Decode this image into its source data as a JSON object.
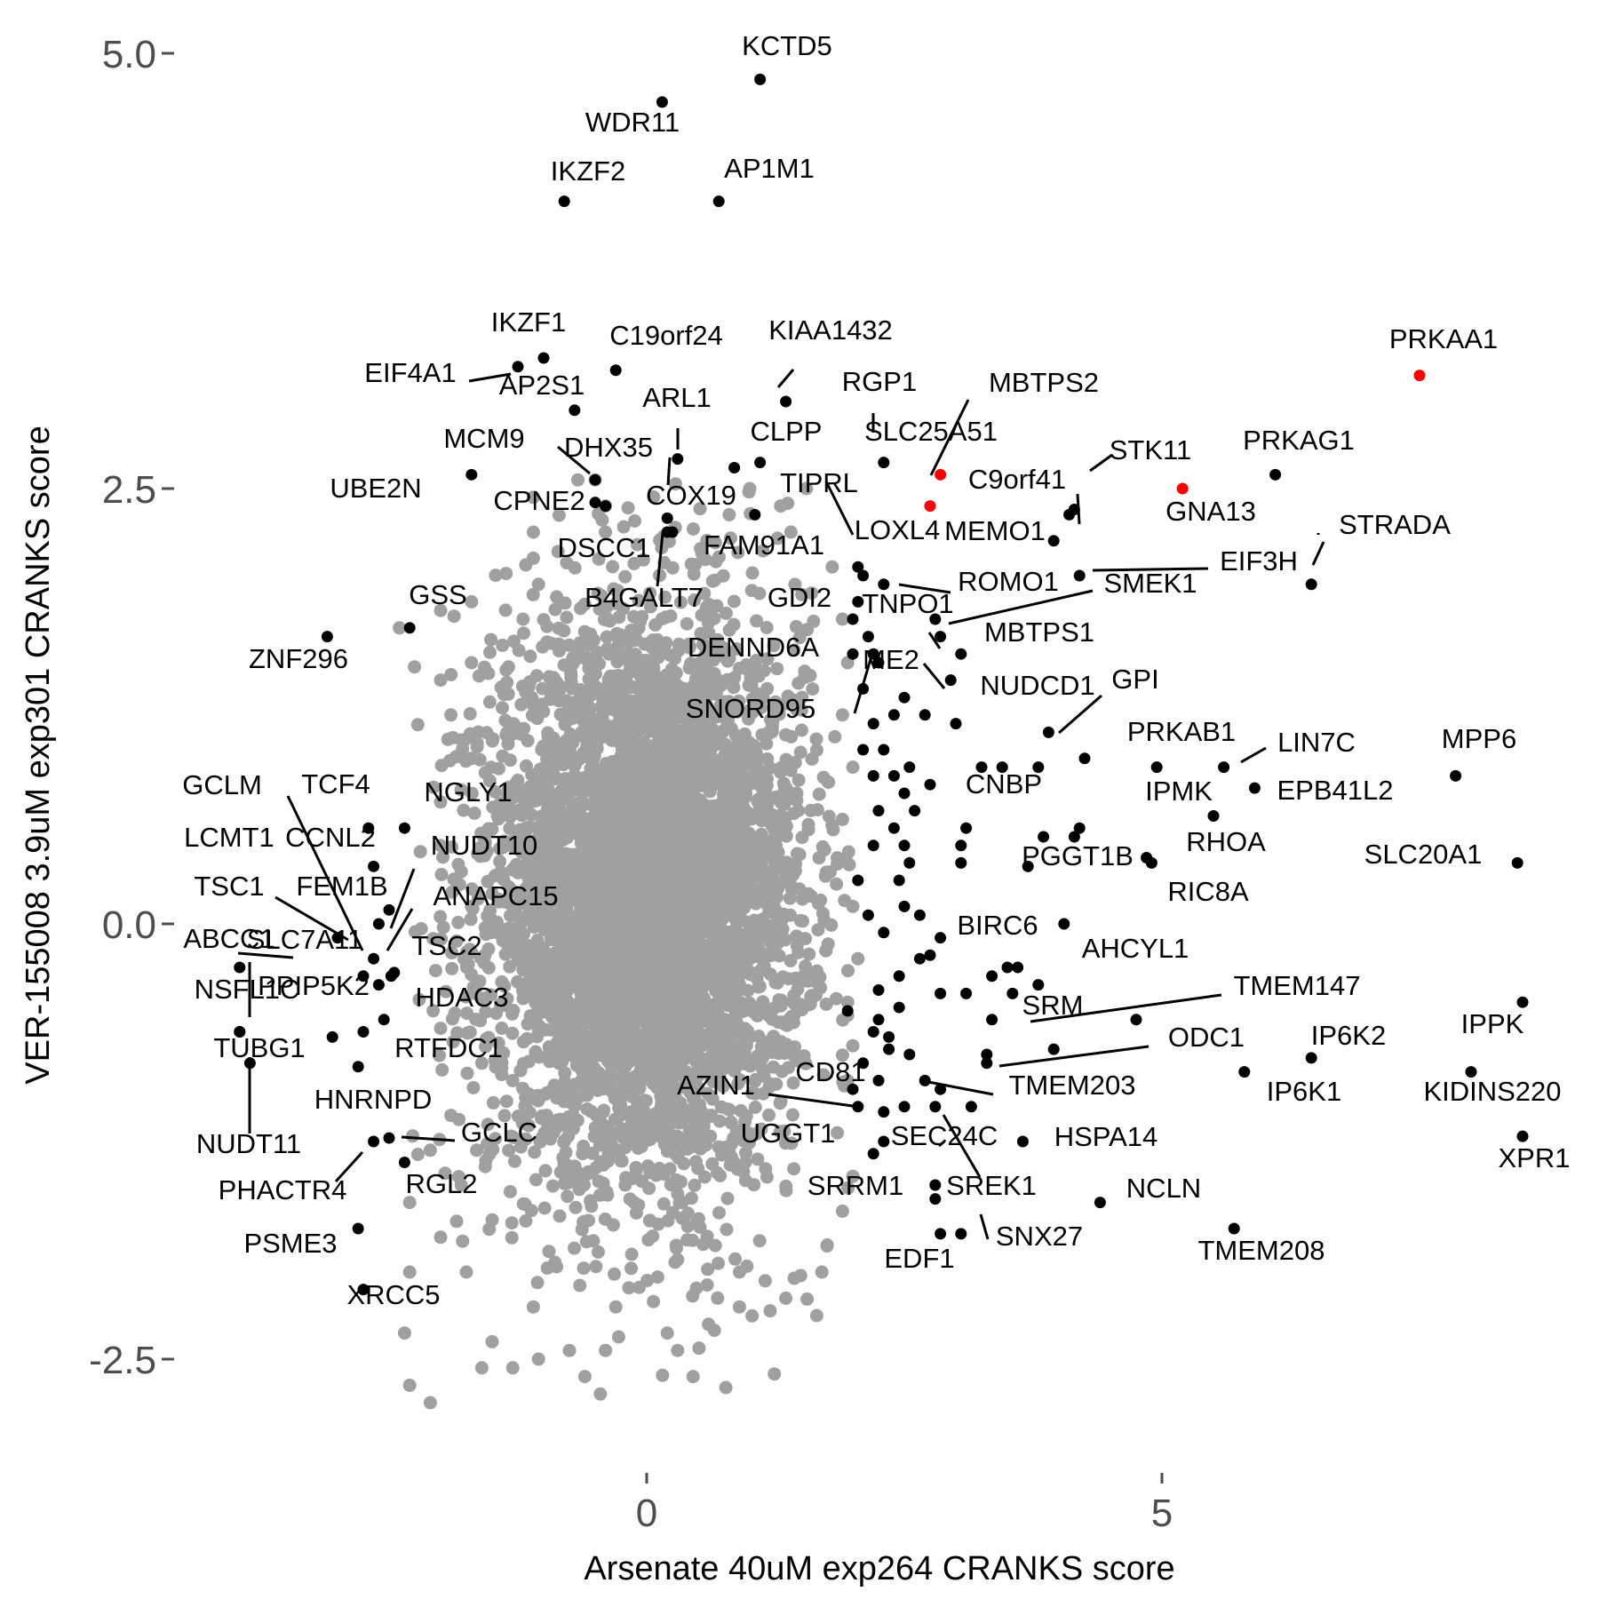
{
  "chart_data": {
    "type": "scatter",
    "xlabel": "Arsenate 40uM exp264 CRANKS score",
    "ylabel": "VER-155008 3.9uM exp301 CRANKS score",
    "xlim": [
      -5.4,
      8.9
    ],
    "ylim": [
      -3.4,
      5.2
    ],
    "xticks": [
      {
        "value": 0,
        "label": "0"
      },
      {
        "value": 5,
        "label": "5"
      }
    ],
    "yticks": [
      {
        "value": 5.0,
        "label": "5.0"
      },
      {
        "value": 2.5,
        "label": "2.5"
      },
      {
        "value": 0.0,
        "label": "0.0"
      },
      {
        "value": -2.5,
        "label": "-2.5"
      }
    ],
    "grid": false,
    "legend": "none",
    "colors": {
      "background": "#2b2b2b",
      "highlight": "#000000",
      "special": "#ff0000",
      "axis_text": "#4d4d4d"
    },
    "background_cloud": {
      "description_color": "#a0a0a0",
      "approx_points": 5000,
      "core_x_mean": 0.0,
      "core_x_sd": 0.75,
      "core_y_mean": 0.15,
      "core_y_sd": 0.8,
      "outliers": [
        [
          -1.1,
          2.45
        ],
        [
          -1.1,
          2.25
        ],
        [
          -1.1,
          2.1
        ],
        [
          -1.05,
          1.95
        ],
        [
          -0.5,
          2.55
        ],
        [
          -0.4,
          2.4
        ],
        [
          -0.4,
          2.25
        ],
        [
          -1.7,
          1.85
        ],
        [
          -2.0,
          1.8
        ],
        [
          -2.4,
          1.7
        ],
        [
          -1.7,
          1.5
        ],
        [
          -1.9,
          1.2
        ],
        [
          -2.0,
          1.4
        ],
        [
          -1.7,
          0.95
        ],
        [
          -2.0,
          0.7
        ],
        [
          -1.8,
          0.3
        ],
        [
          -2.0,
          0.45
        ],
        [
          -1.7,
          0.1
        ],
        [
          -2.0,
          -0.6
        ],
        [
          -1.6,
          -0.8
        ],
        [
          -1.9,
          -1.1
        ],
        [
          -2.1,
          -1.3
        ],
        [
          -1.8,
          -1.5
        ],
        [
          -2.3,
          -1.6
        ],
        [
          -2.0,
          -1.8
        ],
        [
          -1.75,
          -2.0
        ],
        [
          -2.3,
          -2.0
        ],
        [
          -2.35,
          -2.35
        ],
        [
          -1.5,
          -2.4
        ],
        [
          -1.6,
          -2.55
        ],
        [
          -2.3,
          -2.65
        ],
        [
          -2.1,
          -2.75
        ],
        [
          -1.3,
          -2.55
        ],
        [
          -1.05,
          -2.5
        ],
        [
          -0.6,
          -2.6
        ],
        [
          -0.45,
          -2.7
        ],
        [
          -0.4,
          -2.45
        ],
        [
          -1.1,
          -2.2
        ],
        [
          -0.3,
          -2.2
        ],
        [
          0.2,
          -2.35
        ],
        [
          0.3,
          -2.45
        ],
        [
          0.45,
          -2.6
        ],
        [
          0.9,
          -2.2
        ],
        [
          0.9,
          -2.0
        ],
        [
          1.15,
          -2.05
        ],
        [
          1.7,
          -2.0
        ],
        [
          1.65,
          -2.25
        ],
        [
          1.9,
          -1.65
        ],
        [
          2.0,
          -1.45
        ],
        [
          1.85,
          -1.2
        ],
        [
          1.95,
          -0.9
        ],
        [
          2.0,
          -0.7
        ],
        [
          1.95,
          -0.45
        ],
        [
          2.05,
          -0.2
        ],
        [
          2.0,
          0.1
        ],
        [
          1.95,
          0.35
        ],
        [
          1.9,
          0.6
        ],
        [
          2.0,
          0.9
        ],
        [
          1.9,
          1.2
        ],
        [
          1.95,
          1.5
        ],
        [
          1.9,
          1.75
        ],
        [
          1.6,
          1.9
        ],
        [
          1.8,
          2.05
        ],
        [
          1.4,
          2.25
        ],
        [
          1.3,
          2.4
        ],
        [
          1.55,
          2.5
        ],
        [
          1.0,
          2.5
        ],
        [
          0.8,
          2.35
        ],
        [
          -1.3,
          -0.9
        ],
        [
          -1.4,
          1.6
        ],
        [
          -1.2,
          1.75
        ],
        [
          -1.5,
          -1.7
        ],
        [
          -1.65,
          -1.3
        ],
        [
          0.6,
          -2.3
        ],
        [
          -0.75,
          -2.45
        ],
        [
          1.35,
          -2.15
        ],
        [
          1.75,
          -1.85
        ]
      ]
    },
    "special_points": [
      {
        "gene": "PRKAA1",
        "x": 7.5,
        "y": 3.15
      },
      {
        "gene": "GNA13",
        "x": 5.2,
        "y": 2.5
      },
      {
        "gene": "MBTPS2",
        "x": 2.85,
        "y": 2.58
      },
      {
        "gene": "SLC25A51",
        "x": 2.75,
        "y": 2.4
      }
    ],
    "labeled_genes": [
      {
        "gene": "KCTD5",
        "x": 1.1,
        "y": 4.85,
        "label": "KCTD5"
      },
      {
        "gene": "WDR11",
        "x": 0.15,
        "y": 4.72,
        "label": "WDR11"
      },
      {
        "gene": "IKZF2",
        "x": -0.8,
        "y": 4.15,
        "label": "IKZF2"
      },
      {
        "gene": "AP1M1",
        "x": 0.7,
        "y": 4.15,
        "label": "AP1M1"
      },
      {
        "gene": "IKZF1",
        "x": -1.0,
        "y": 3.25,
        "label": "IKZF1"
      },
      {
        "gene": "C19orf24",
        "x": -0.3,
        "y": 3.18,
        "label": "C19orf24"
      },
      {
        "gene": "EIF4A1",
        "x": -1.25,
        "y": 3.2,
        "label": "EIF4A1"
      },
      {
        "gene": "AP2S1",
        "x": -0.7,
        "y": 2.95,
        "label": "AP2S1"
      },
      {
        "gene": "KIAA1432",
        "x": 1.35,
        "y": 3.0,
        "label": "KIAA1432"
      },
      {
        "gene": "RGP1",
        "x": 2.3,
        "y": 2.65,
        "label": "RGP1"
      },
      {
        "gene": "CLPP",
        "x": 1.1,
        "y": 2.65,
        "label": "CLPP"
      },
      {
        "gene": "ARL1",
        "x": 0.3,
        "y": 2.67,
        "label": "ARL1"
      },
      {
        "gene": "MCM9",
        "x": -0.5,
        "y": 2.55,
        "label": "MCM9"
      },
      {
        "gene": "DHX35",
        "x": -0.5,
        "y": 2.42,
        "label": "DHX35"
      },
      {
        "gene": "UBE2N",
        "x": -1.7,
        "y": 2.58,
        "label": "UBE2N"
      },
      {
        "gene": "CPNE2",
        "x": -0.4,
        "y": 2.4,
        "label": "CPNE2"
      },
      {
        "gene": "COX19",
        "x": 0.2,
        "y": 2.33,
        "label": "COX19"
      },
      {
        "gene": "DSCC1",
        "x": 0.85,
        "y": 2.62,
        "label": "DSCC1"
      },
      {
        "gene": "TIPRL",
        "x": 1.05,
        "y": 2.35,
        "label": "TIPRL"
      },
      {
        "gene": "FAM91A1",
        "x": 0.2,
        "y": 2.25,
        "label": "FAM91A1"
      },
      {
        "gene": "B4GALT7",
        "x": 0.25,
        "y": 2.25,
        "label": "B4GALT7"
      },
      {
        "gene": "GDI2",
        "x": 2.05,
        "y": 2.05,
        "label": "GDI2"
      },
      {
        "gene": "LOXL4",
        "x": 2.1,
        "y": 2.0,
        "label": "LOXL4"
      },
      {
        "gene": "C9orf41",
        "x": 4.1,
        "y": 2.35,
        "label": "C9orf41"
      },
      {
        "gene": "STK11",
        "x": 4.15,
        "y": 2.38,
        "label": "STK11"
      },
      {
        "gene": "PRKAG1",
        "x": 6.1,
        "y": 2.58,
        "label": "PRKAG1"
      },
      {
        "gene": "MEMO1",
        "x": 3.95,
        "y": 2.2,
        "label": "MEMO1"
      },
      {
        "gene": "STRADA",
        "x": 6.45,
        "y": 1.95,
        "label": "STRADA"
      },
      {
        "gene": "EIF3H",
        "x": 4.2,
        "y": 2.0,
        "label": "EIF3H"
      },
      {
        "gene": "ROMO1",
        "x": 2.3,
        "y": 1.95,
        "label": "ROMO1"
      },
      {
        "gene": "SMEK1",
        "x": 2.8,
        "y": 1.75,
        "label": "SMEK1"
      },
      {
        "gene": "TNPO1",
        "x": 2.05,
        "y": 1.85,
        "label": "TNPO1"
      },
      {
        "gene": "GSS",
        "x": -2.3,
        "y": 1.7,
        "label": "GSS"
      },
      {
        "gene": "ZNF296",
        "x": -3.1,
        "y": 1.65,
        "label": "ZNF296"
      },
      {
        "gene": "MBTPS1",
        "x": 3.05,
        "y": 1.55,
        "label": "MBTPS1"
      },
      {
        "gene": "DENND6A",
        "x": 2.15,
        "y": 1.65,
        "label": "DENND6A"
      },
      {
        "gene": "ME2",
        "x": 2.85,
        "y": 1.65,
        "label": "ME2"
      },
      {
        "gene": "NUDCD1",
        "x": 2.95,
        "y": 1.4,
        "label": "NUDCD1"
      },
      {
        "gene": "SNORD95",
        "x": 2.2,
        "y": 1.55,
        "label": "SNORD95"
      },
      {
        "gene": "GPI",
        "x": 3.9,
        "y": 1.1,
        "label": "GPI"
      },
      {
        "gene": "PRKAB1",
        "x": 4.95,
        "y": 0.9,
        "label": "PRKAB1"
      },
      {
        "gene": "LIN7C",
        "x": 5.6,
        "y": 0.9,
        "label": "LIN7C"
      },
      {
        "gene": "MPP6",
        "x": 7.85,
        "y": 0.85,
        "label": "MPP6"
      },
      {
        "gene": "IPMK",
        "x": 5.5,
        "y": 0.62,
        "label": "IPMK"
      },
      {
        "gene": "EPB41L2",
        "x": 5.9,
        "y": 0.78,
        "label": "EPB41L2"
      },
      {
        "gene": "CNBP",
        "x": 3.25,
        "y": 0.9,
        "label": "CNBP"
      },
      {
        "gene": "RHOA",
        "x": 4.15,
        "y": 0.5,
        "label": "RHOA"
      },
      {
        "gene": "SLC20A1",
        "x": 8.45,
        "y": 0.35,
        "label": "SLC20A1"
      },
      {
        "gene": "PGGT1B",
        "x": 3.7,
        "y": 0.33,
        "label": "PGGT1B"
      },
      {
        "gene": "RIC8A",
        "x": 4.9,
        "y": 0.35,
        "label": "RIC8A"
      },
      {
        "gene": "BIRC6",
        "x": 2.85,
        "y": -0.08,
        "label": "BIRC6"
      },
      {
        "gene": "AHCYL1",
        "x": 4.05,
        "y": 0.0,
        "label": "AHCYL1"
      },
      {
        "gene": "TMEM147",
        "x": 4.75,
        "y": -0.55,
        "label": "TMEM147"
      },
      {
        "gene": "SRM",
        "x": 3.95,
        "y": -0.72,
        "label": "SRM"
      },
      {
        "gene": "IPPK",
        "x": 8.5,
        "y": -0.45,
        "label": "IPPK"
      },
      {
        "gene": "ODC1",
        "x": 3.3,
        "y": -0.8,
        "label": "ODC1"
      },
      {
        "gene": "IP6K2",
        "x": 6.45,
        "y": -0.77,
        "label": "IP6K2"
      },
      {
        "gene": "IP6K1",
        "x": 5.8,
        "y": -0.85,
        "label": "IP6K1"
      },
      {
        "gene": "KIDINS220",
        "x": 8.0,
        "y": -0.85,
        "label": "KIDINS220"
      },
      {
        "gene": "TMEM203",
        "x": 2.7,
        "y": -0.9,
        "label": "TMEM203"
      },
      {
        "gene": "AZIN1",
        "x": 2.05,
        "y": -1.05,
        "label": "AZIN1"
      },
      {
        "gene": "CD81",
        "x": 2.3,
        "y": -1.08,
        "label": "CD81"
      },
      {
        "gene": "HSPA14",
        "x": 3.65,
        "y": -1.25,
        "label": "HSPA14"
      },
      {
        "gene": "XPR1",
        "x": 8.5,
        "y": -1.22,
        "label": "XPR1"
      },
      {
        "gene": "UGGT1",
        "x": 2.2,
        "y": -1.32,
        "label": "UGGT1"
      },
      {
        "gene": "SEC24C",
        "x": 2.8,
        "y": -1.05,
        "label": "SEC24C"
      },
      {
        "gene": "SREK1",
        "x": 2.8,
        "y": -1.5,
        "label": "SREK1"
      },
      {
        "gene": "NCLN",
        "x": 4.4,
        "y": -1.6,
        "label": "NCLN"
      },
      {
        "gene": "SRRM1",
        "x": 2.8,
        "y": -1.58,
        "label": "SRRM1"
      },
      {
        "gene": "TMEM208",
        "x": 5.7,
        "y": -1.75,
        "label": "TMEM208"
      },
      {
        "gene": "SNX27",
        "x": 3.05,
        "y": -1.78,
        "label": "SNX27"
      },
      {
        "gene": "EDF1",
        "x": 2.85,
        "y": -1.78,
        "label": "EDF1"
      },
      {
        "gene": "GCLM",
        "x": -3.95,
        "y": -0.25,
        "label": "GCLM"
      },
      {
        "gene": "TCF4",
        "x": -2.7,
        "y": 0.55,
        "label": "TCF4"
      },
      {
        "gene": "NGLY1",
        "x": -2.35,
        "y": 0.55,
        "label": "NGLY1"
      },
      {
        "gene": "LCMT1",
        "x": -2.65,
        "y": -0.2,
        "label": "LCMT1"
      },
      {
        "gene": "CCNL2",
        "x": -2.65,
        "y": 0.33,
        "label": "CCNL2"
      },
      {
        "gene": "NUDT10",
        "x": -2.5,
        "y": 0.08,
        "label": "NUDT10"
      },
      {
        "gene": "TSC1",
        "x": -3.0,
        "y": -0.08,
        "label": "TSC1"
      },
      {
        "gene": "FEM1B",
        "x": -2.6,
        "y": 0.0,
        "label": "FEM1B"
      },
      {
        "gene": "ANAPC15",
        "x": -2.48,
        "y": -0.3,
        "label": "ANAPC15"
      },
      {
        "gene": "ABCC1",
        "x": -3.95,
        "y": -0.62,
        "label": "ABCC1"
      },
      {
        "gene": "SLC7A11",
        "x": -2.75,
        "y": -0.3,
        "label": "SLC7A11"
      },
      {
        "gene": "TSC2",
        "x": -2.45,
        "y": -0.28,
        "label": "TSC2"
      },
      {
        "gene": "NSFL1C",
        "x": -3.95,
        "y": -0.62,
        "label": "NSFL1C"
      },
      {
        "gene": "PPIP5K2",
        "x": -2.6,
        "y": -0.35,
        "label": "PPIP5K2"
      },
      {
        "gene": "HDAC3",
        "x": -2.55,
        "y": -0.55,
        "label": "HDAC3"
      },
      {
        "gene": "TUBG1",
        "x": -3.05,
        "y": -0.65,
        "label": "TUBG1"
      },
      {
        "gene": "RTFDC1",
        "x": -2.8,
        "y": -0.82,
        "label": "RTFDC1"
      },
      {
        "gene": "NUDT11",
        "x": -3.85,
        "y": -0.8,
        "label": "NUDT11"
      },
      {
        "gene": "HNRNPD",
        "x": -2.75,
        "y": -0.62,
        "label": "HNRNPD"
      },
      {
        "gene": "GCLC",
        "x": -2.5,
        "y": -1.23,
        "label": "GCLC"
      },
      {
        "gene": "PHACTR4",
        "x": -2.65,
        "y": -1.25,
        "label": "PHACTR4"
      },
      {
        "gene": "RGL2",
        "x": -2.35,
        "y": -1.37,
        "label": "RGL2"
      },
      {
        "gene": "PSME3",
        "x": -2.8,
        "y": -1.75,
        "label": "PSME3"
      },
      {
        "gene": "XRCC5",
        "x": -2.75,
        "y": -2.1,
        "label": "XRCC5"
      }
    ],
    "extra_black_points": [
      [
        2.0,
        1.75
      ],
      [
        2.0,
        1.55
      ],
      [
        2.1,
        1.35
      ],
      [
        2.25,
        1.5
      ],
      [
        2.5,
        1.3
      ],
      [
        2.2,
        1.15
      ],
      [
        2.4,
        1.2
      ],
      [
        2.7,
        1.2
      ],
      [
        3.0,
        1.15
      ],
      [
        2.1,
        1.0
      ],
      [
        2.3,
        1.0
      ],
      [
        2.2,
        0.85
      ],
      [
        2.4,
        0.85
      ],
      [
        2.5,
        0.75
      ],
      [
        2.55,
        0.9
      ],
      [
        2.6,
        0.65
      ],
      [
        2.25,
        0.65
      ],
      [
        2.4,
        0.55
      ],
      [
        2.2,
        0.45
      ],
      [
        2.5,
        0.45
      ],
      [
        2.75,
        0.8
      ],
      [
        3.05,
        0.35
      ],
      [
        3.05,
        0.45
      ],
      [
        2.05,
        0.25
      ],
      [
        2.45,
        0.25
      ],
      [
        2.15,
        0.05
      ],
      [
        2.3,
        -0.05
      ],
      [
        2.5,
        0.1
      ],
      [
        2.65,
        0.05
      ],
      [
        2.75,
        -0.18
      ],
      [
        2.45,
        -0.3
      ],
      [
        2.25,
        -0.38
      ],
      [
        2.25,
        -0.55
      ],
      [
        2.35,
        -0.65
      ],
      [
        2.45,
        -0.48
      ],
      [
        2.85,
        -0.4
      ],
      [
        3.1,
        -0.4
      ],
      [
        3.35,
        -0.3
      ],
      [
        3.5,
        -0.25
      ],
      [
        3.6,
        -0.25
      ],
      [
        3.55,
        -0.4
      ],
      [
        3.8,
        -0.35
      ],
      [
        3.35,
        -0.55
      ],
      [
        3.3,
        -0.75
      ],
      [
        2.55,
        -0.75
      ],
      [
        2.85,
        -0.95
      ],
      [
        2.1,
        -0.8
      ],
      [
        2.25,
        -0.9
      ],
      [
        2.5,
        -1.05
      ],
      [
        2.35,
        -0.72
      ],
      [
        2.2,
        -0.62
      ],
      [
        2.0,
        -0.95
      ],
      [
        1.95,
        -0.5
      ],
      [
        2.3,
        -1.25
      ],
      [
        3.15,
        -1.05
      ],
      [
        3.45,
        0.9
      ],
      [
        3.8,
        0.9
      ],
      [
        4.25,
        0.95
      ],
      [
        4.85,
        0.38
      ],
      [
        4.2,
        0.55
      ],
      [
        3.85,
        0.5
      ],
      [
        3.1,
        0.55
      ],
      [
        2.55,
        0.35
      ],
      [
        2.65,
        -0.2
      ]
    ]
  }
}
